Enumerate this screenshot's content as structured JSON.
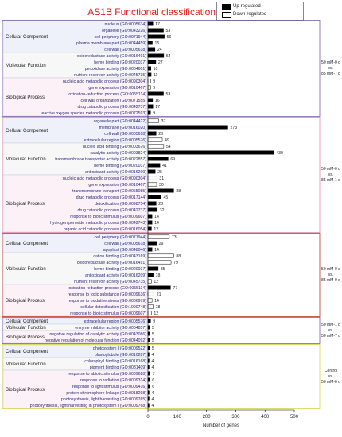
{
  "title": "AS1B Functional classification of DEGs",
  "legend": {
    "up": "Up-regulated",
    "down": "Down-regulated"
  },
  "colors": {
    "title": "#e01b1b",
    "cc_box": "#eef0fa",
    "mf_box": "#f6f7f6",
    "bp_box": "#fbf1f7",
    "block_borders": [
      "#7b5ea7",
      "#e58aa8",
      "#c0392b",
      "#7b5ea7",
      "#d8d24a"
    ]
  },
  "chart_data": {
    "type": "bar",
    "title": "AS1B Functional classification of DEGs",
    "xlabel": "Number of genes",
    "ylabel": "",
    "xlim": [
      0,
      500
    ],
    "xticks": [
      0,
      100,
      200,
      300,
      400,
      500
    ],
    "grid": false,
    "legend_position": "top-right",
    "blocks": [
      {
        "comparison": "50 mM-0 d vs. 85 mM-7 d",
        "groups": [
          {
            "name": "Cellular Component",
            "terms": [
              {
                "label": "nucleus (GO:0005634)",
                "value": 17,
                "dir": "up"
              },
              {
                "label": "organelle (GO:0043226)",
                "value": 53,
                "dir": "up"
              },
              {
                "label": "cell periphery (GO:0071944)",
                "value": 56,
                "dir": "up"
              },
              {
                "label": "plasma membrane part (GO:0044459)",
                "value": 15,
                "dir": "up"
              },
              {
                "label": "cell wall (GO:0005618)",
                "value": 24,
                "dir": "up"
              }
            ]
          },
          {
            "name": "Molecular Function",
            "terms": [
              {
                "label": "oxidoreductase activity (GO:0016491)",
                "value": 54,
                "dir": "up"
              },
              {
                "label": "heme binding (GO:0020037)",
                "value": 27,
                "dir": "up"
              },
              {
                "label": "peroxidase activity (GO:0004601)",
                "value": 10,
                "dir": "up"
              },
              {
                "label": "nutrient reservoir activity (GO:0045735)",
                "value": 11,
                "dir": "up"
              }
            ]
          },
          {
            "name": "Biological Process",
            "terms": [
              {
                "label": "nucleic acid metabolic process (GO:0090304)",
                "value": 9,
                "dir": "down"
              },
              {
                "label": "gene expression (GO:0010467)",
                "value": 9,
                "dir": "down"
              },
              {
                "label": "oxidation-reduction process (GO:0055114)",
                "value": 53,
                "dir": "up"
              },
              {
                "label": "cell wall organization (GO:0071555)",
                "value": 16,
                "dir": "up"
              },
              {
                "label": "drug catabolic process (GO:0042737)",
                "value": 17,
                "dir": "up"
              },
              {
                "label": "reactive oxygen species metabolic process (GO:0072593)",
                "value": 9,
                "dir": "up"
              }
            ]
          }
        ]
      },
      {
        "comparison": "50 mM-0 d vs. 85 mM-1 d",
        "groups": [
          {
            "name": "Cellular Component",
            "terms": [
              {
                "label": "organelle part (GO:0044422)",
                "value": 37,
                "dir": "down"
              },
              {
                "label": "membrane (GO:0016020)",
                "value": 273,
                "dir": "up"
              },
              {
                "label": "cell wall (GO:0005618)",
                "value": 28,
                "dir": "up"
              },
              {
                "label": "extracellular region (GO:0005576)",
                "value": 49,
                "dir": "down"
              }
            ]
          },
          {
            "name": "Molecular Function",
            "terms": [
              {
                "label": "nucleic acid binding (GO:0003676)",
                "value": 54,
                "dir": "down"
              },
              {
                "label": "catalytic activity (GO:0003824)",
                "value": 430,
                "dir": "up"
              },
              {
                "label": "transmembrane transporter activity (GO:0022857)",
                "value": 69,
                "dir": "up"
              },
              {
                "label": "heme binding (GO:0020037)",
                "value": 41,
                "dir": "up"
              },
              {
                "label": "antioxidant activity (GO:0016209)",
                "value": 25,
                "dir": "up"
              }
            ]
          },
          {
            "name": "Biological Process",
            "terms": [
              {
                "label": "nucleic acid metabolic process (GO:0090304)",
                "value": 31,
                "dir": "down"
              },
              {
                "label": "gene expression (GO:0010467)",
                "value": 30,
                "dir": "down"
              },
              {
                "label": "transmembrane transport (GO:0055085)",
                "value": 88,
                "dir": "up"
              },
              {
                "label": "drug metabolic process (GO:0017144)",
                "value": 45,
                "dir": "up"
              },
              {
                "label": "detoxification (GO:0098754)",
                "value": 28,
                "dir": "up"
              },
              {
                "label": "drug catabolic process (GO:0042737)",
                "value": 32,
                "dir": "up"
              },
              {
                "label": "response to biotic stimulus (GO:0009607)",
                "value": 14,
                "dir": "up"
              },
              {
                "label": "hydrogen peroxide metabolic process (GO:0042743)",
                "value": 14,
                "dir": "up"
              },
              {
                "label": "organic acid catabolic process (GO:0016054)",
                "value": 12,
                "dir": "up"
              }
            ]
          }
        ]
      },
      {
        "comparison": "50 mM-0 d vs. 85 mM-0 d",
        "groups": [
          {
            "name": "Cellular Component",
            "terms": [
              {
                "label": "cell periphery (GO:0071944)",
                "value": 73,
                "dir": "down"
              },
              {
                "label": "cell wall (GO:0005618)",
                "value": 29,
                "dir": "up"
              },
              {
                "label": "apoplast (GO:0048046)",
                "value": 14,
                "dir": "up"
              }
            ]
          },
          {
            "name": "Molecular Function",
            "terms": [
              {
                "label": "cation binding (GO:0043169)",
                "value": 88,
                "dir": "down"
              },
              {
                "label": "oxidoreductase activity (GO:0016491)",
                "value": 79,
                "dir": "down"
              },
              {
                "label": "heme binding (GO:0020037)",
                "value": 35,
                "dir": "up"
              },
              {
                "label": "antioxidant activity (GO:0016209)",
                "value": 18,
                "dir": "up"
              },
              {
                "label": "nutrient reservoir activity (GO:0045735)",
                "value": 12,
                "dir": "down"
              }
            ]
          },
          {
            "name": "Biological Process",
            "terms": [
              {
                "label": "oxidation-reduction process (GO:0055114)",
                "value": 77,
                "dir": "up"
              },
              {
                "label": "response to toxic substance (GO:0009636)",
                "value": 21,
                "dir": "down"
              },
              {
                "label": "response to oxidative stress (GO:0006979)",
                "value": 14,
                "dir": "down"
              },
              {
                "label": "cellular detoxification (GO:1990748)",
                "value": 18,
                "dir": "down"
              },
              {
                "label": "response to biotic stimulus (GO:0009607)",
                "value": 12,
                "dir": "down"
              }
            ]
          }
        ]
      },
      {
        "comparison": "50 mM-1 d vs. 50 mM-7 d",
        "groups": [
          {
            "name": "Cellular Component",
            "terms": [
              {
                "label": "extracellular region (GO:0005576)",
                "value": 9,
                "dir": "up"
              }
            ]
          },
          {
            "name": "Molecular Function",
            "terms": [
              {
                "label": "enzyme inhibitor activity (GO:0004857)",
                "value": 5,
                "dir": "up"
              }
            ]
          },
          {
            "name": "Biological Process",
            "terms": [
              {
                "label": "negative regulation of catalytic activity (GO:0043086)",
                "value": 5,
                "dir": "up"
              },
              {
                "label": "negative regulation of molecular function (GO:0044092)",
                "value": 5,
                "dir": "up"
              }
            ]
          }
        ]
      },
      {
        "comparison": "Control vs. 50 mM-0 d",
        "groups": [
          {
            "name": "Cellular Component",
            "terms": [
              {
                "label": "photosystem I (GO:0009522)",
                "value": 5,
                "dir": "up"
              },
              {
                "label": "plastoglobule (GO:0010287)",
                "value": 4,
                "dir": "up"
              }
            ]
          },
          {
            "name": "Molecular Function",
            "terms": [
              {
                "label": "chlorophyll binding (GO:0016168)",
                "value": 4,
                "dir": "up"
              },
              {
                "label": "pigment binding (GO:0031409)",
                "value": 4,
                "dir": "up"
              }
            ]
          },
          {
            "name": "Biological Process",
            "terms": [
              {
                "label": "response to abiotic stimulus (GO:0009628)",
                "value": 7,
                "dir": "up"
              },
              {
                "label": "response to radiation (GO:0009314)",
                "value": 6,
                "dir": "up"
              },
              {
                "label": "response to light stimulus (GO:0009416)",
                "value": 6,
                "dir": "up"
              },
              {
                "label": "protein-chromophore linkage (GO:0018298)",
                "value": 4,
                "dir": "up"
              },
              {
                "label": "photosynthesis, light harvesting (GO:0009765)",
                "value": 4,
                "dir": "up"
              },
              {
                "label": "photosynthesis, light harvesting in photosystem I (GO:0009768)",
                "value": 4,
                "dir": "up"
              }
            ]
          }
        ]
      }
    ]
  }
}
